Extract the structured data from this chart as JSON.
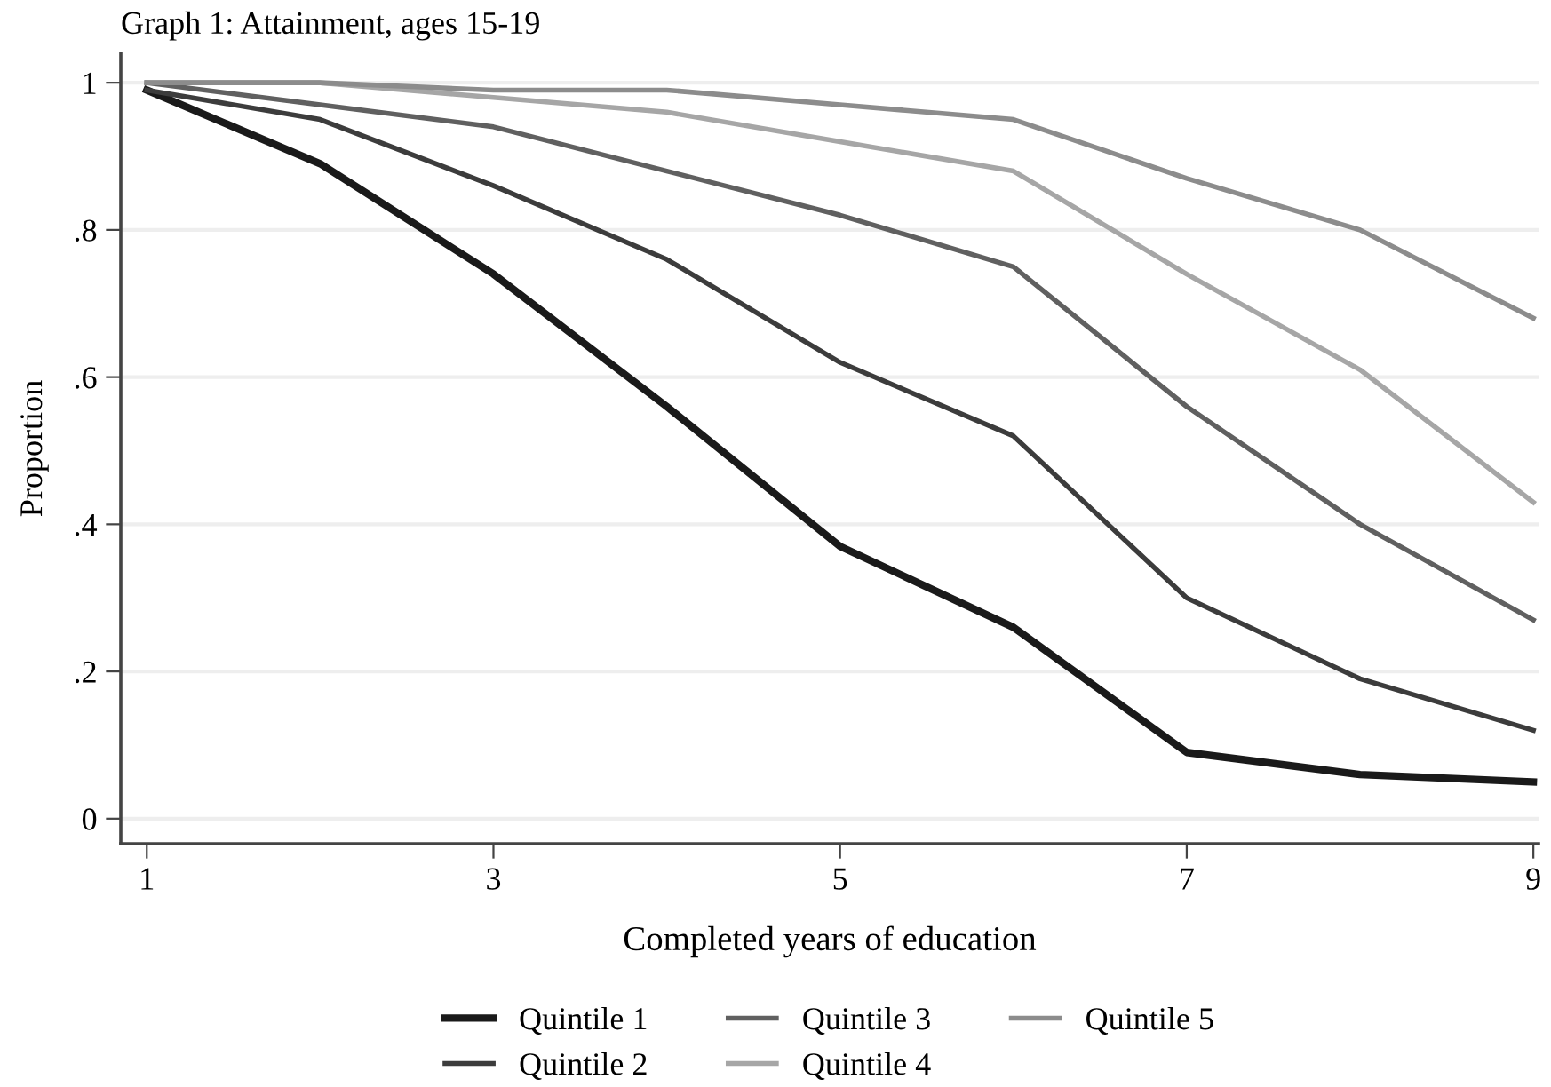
{
  "chart_data": {
    "type": "line",
    "title": "Graph 1: Attainment, ages 15-19",
    "xlabel": "Completed years of education",
    "ylabel": "Proportion",
    "x": [
      1,
      2,
      3,
      4,
      5,
      6,
      7,
      8,
      9
    ],
    "series": [
      {
        "name": "Quintile 1",
        "color": "#1a1a1a",
        "values": [
          0.99,
          0.89,
          0.74,
          0.56,
          0.37,
          0.26,
          0.09,
          0.06,
          0.05
        ]
      },
      {
        "name": "Quintile 2",
        "color": "#3c3c3c",
        "values": [
          0.99,
          0.95,
          0.86,
          0.76,
          0.62,
          0.52,
          0.3,
          0.19,
          0.12
        ]
      },
      {
        "name": "Quintile 3",
        "color": "#606060",
        "values": [
          1.0,
          0.97,
          0.94,
          0.88,
          0.82,
          0.75,
          0.56,
          0.4,
          0.27
        ]
      },
      {
        "name": "Quintile 4",
        "color": "#a6a6a6",
        "values": [
          1.0,
          1.0,
          0.98,
          0.96,
          0.92,
          0.88,
          0.74,
          0.61,
          0.43
        ]
      },
      {
        "name": "Quintile 5",
        "color": "#8c8c8c",
        "values": [
          1.0,
          1.0,
          0.99,
          0.99,
          0.97,
          0.95,
          0.87,
          0.8,
          0.68
        ]
      }
    ],
    "xlim": [
      0.85,
      9.03
    ],
    "xticks": [
      1,
      3,
      5,
      7,
      9
    ],
    "ylim": [
      -0.034,
      1.04
    ],
    "yticks": [
      {
        "value": 0,
        "label": "0"
      },
      {
        "value": 0.2,
        "label": ".2"
      },
      {
        "value": 0.4,
        "label": ".4"
      },
      {
        "value": 0.6,
        "label": ".6"
      },
      {
        "value": 0.8,
        "label": ".8"
      },
      {
        "value": 1,
        "label": "1"
      }
    ],
    "grid": "y",
    "legend": "bottom",
    "marker": "none",
    "line_style": "solid"
  }
}
